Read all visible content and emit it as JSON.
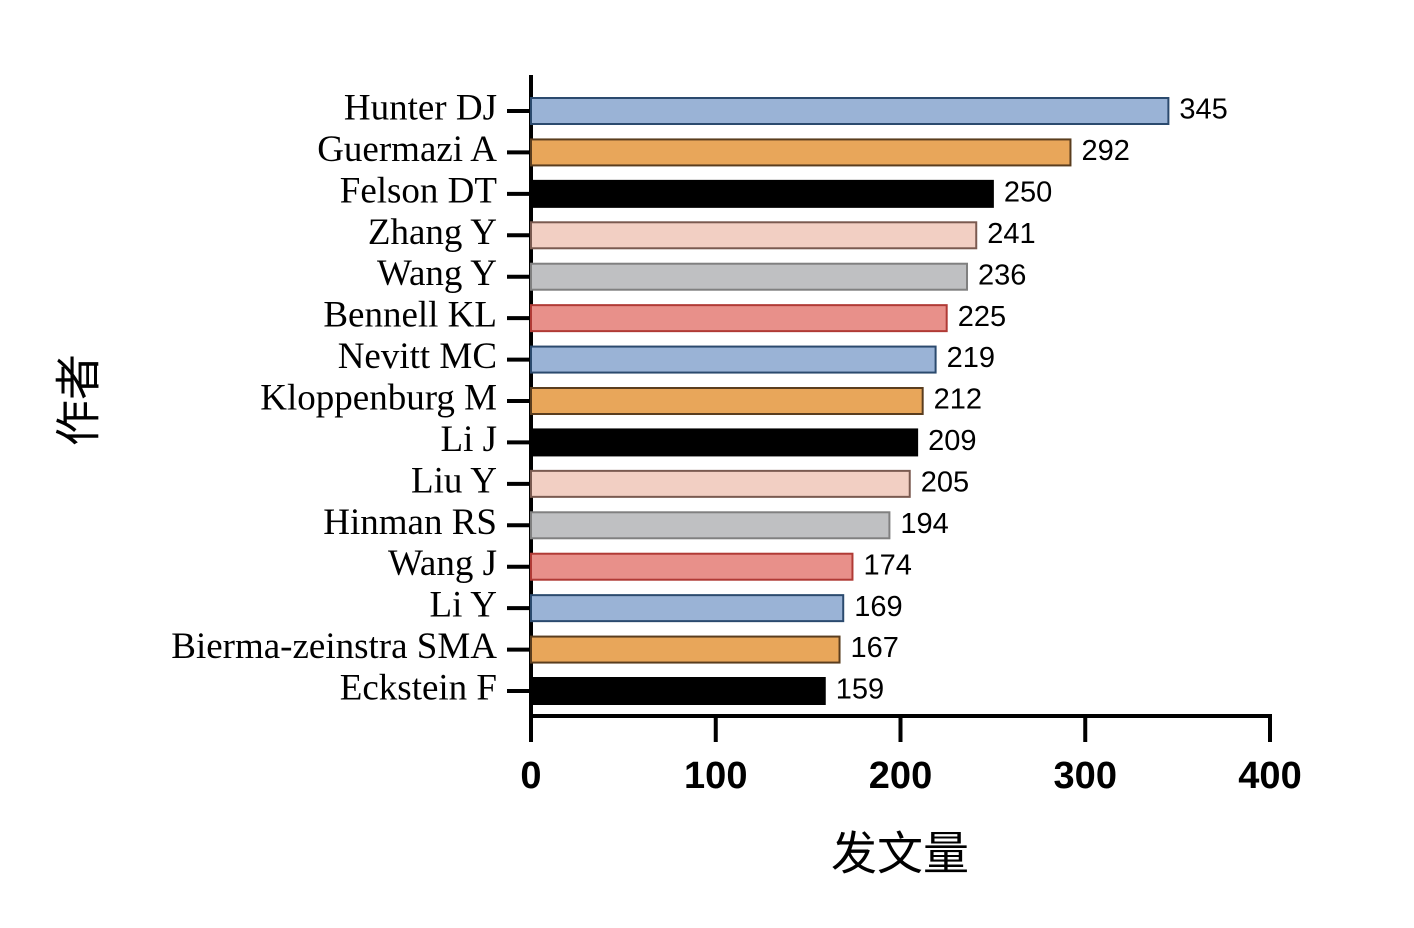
{
  "chart_data": {
    "type": "barh",
    "categories": [
      "Hunter DJ",
      "Guermazi A",
      "Felson DT",
      "Zhang Y",
      "Wang Y",
      "Bennell KL",
      "Nevitt MC",
      "Kloppenburg M",
      "Li J",
      "Liu Y",
      "Hinman RS",
      "Wang J",
      "Li Y",
      "Bierma-zeinstra SMA",
      "Eckstein F"
    ],
    "values": [
      345,
      292,
      250,
      241,
      236,
      225,
      219,
      212,
      209,
      205,
      194,
      174,
      169,
      167,
      159
    ],
    "colors": [
      "#9ab3d6",
      "#e8a65a",
      "#000000",
      "#f2cfc3",
      "#bfc0c2",
      "#e8908a",
      "#9ab3d6",
      "#e8a65a",
      "#000000",
      "#f2cfc3",
      "#bfc0c2",
      "#e8908a",
      "#9ab3d6",
      "#e8a65a",
      "#000000"
    ],
    "edge_colors": [
      "#2b4a6e",
      "#5a3d1e",
      "#000000",
      "#7a5a50",
      "#808080",
      "#b03a35",
      "#2b4a6e",
      "#5a3d1e",
      "#000000",
      "#7a5a50",
      "#808080",
      "#b03a35",
      "#2b4a6e",
      "#5a3d1e",
      "#000000"
    ],
    "xlim": [
      0,
      400
    ],
    "xticks": [
      0,
      100,
      200,
      300,
      400
    ],
    "x_label": "发文量",
    "y_label": "作者"
  }
}
